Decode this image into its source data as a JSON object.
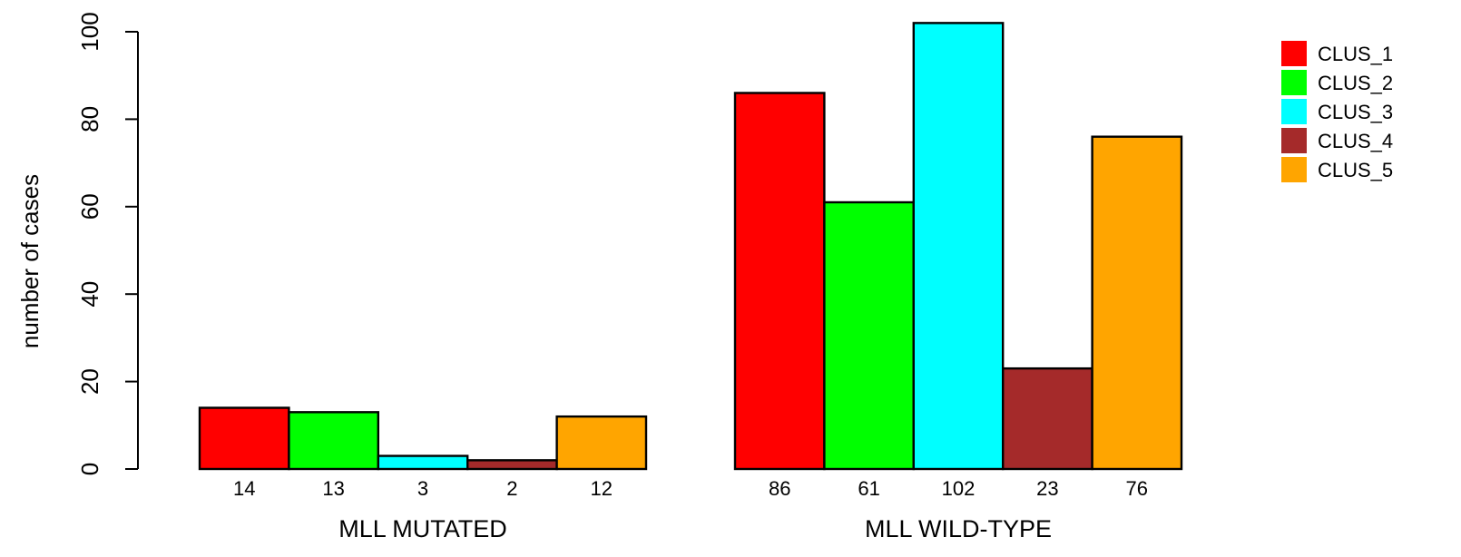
{
  "chart_data": {
    "type": "bar",
    "ylabel": "number of cases",
    "ylim": [
      0,
      100
    ],
    "yticks": [
      0,
      20,
      40,
      60,
      80,
      100
    ],
    "groups": [
      "MLL MUTATED",
      "MLL WILD-TYPE"
    ],
    "series": [
      {
        "name": "CLUS_1",
        "color": "#ff0000",
        "values": [
          14,
          86
        ]
      },
      {
        "name": "CLUS_2",
        "color": "#00ff00",
        "values": [
          13,
          61
        ]
      },
      {
        "name": "CLUS_3",
        "color": "#00ffff",
        "values": [
          3,
          102
        ]
      },
      {
        "name": "CLUS_4",
        "color": "#a52a2a",
        "values": [
          2,
          23
        ]
      },
      {
        "name": "CLUS_5",
        "color": "#ffa500",
        "values": [
          12,
          76
        ]
      }
    ],
    "bar_labels": [
      [
        "14",
        "13",
        "3",
        "2",
        "12"
      ],
      [
        "86",
        "61",
        "102",
        "23",
        "76"
      ]
    ],
    "legend_position": "top-right",
    "grid": false
  }
}
